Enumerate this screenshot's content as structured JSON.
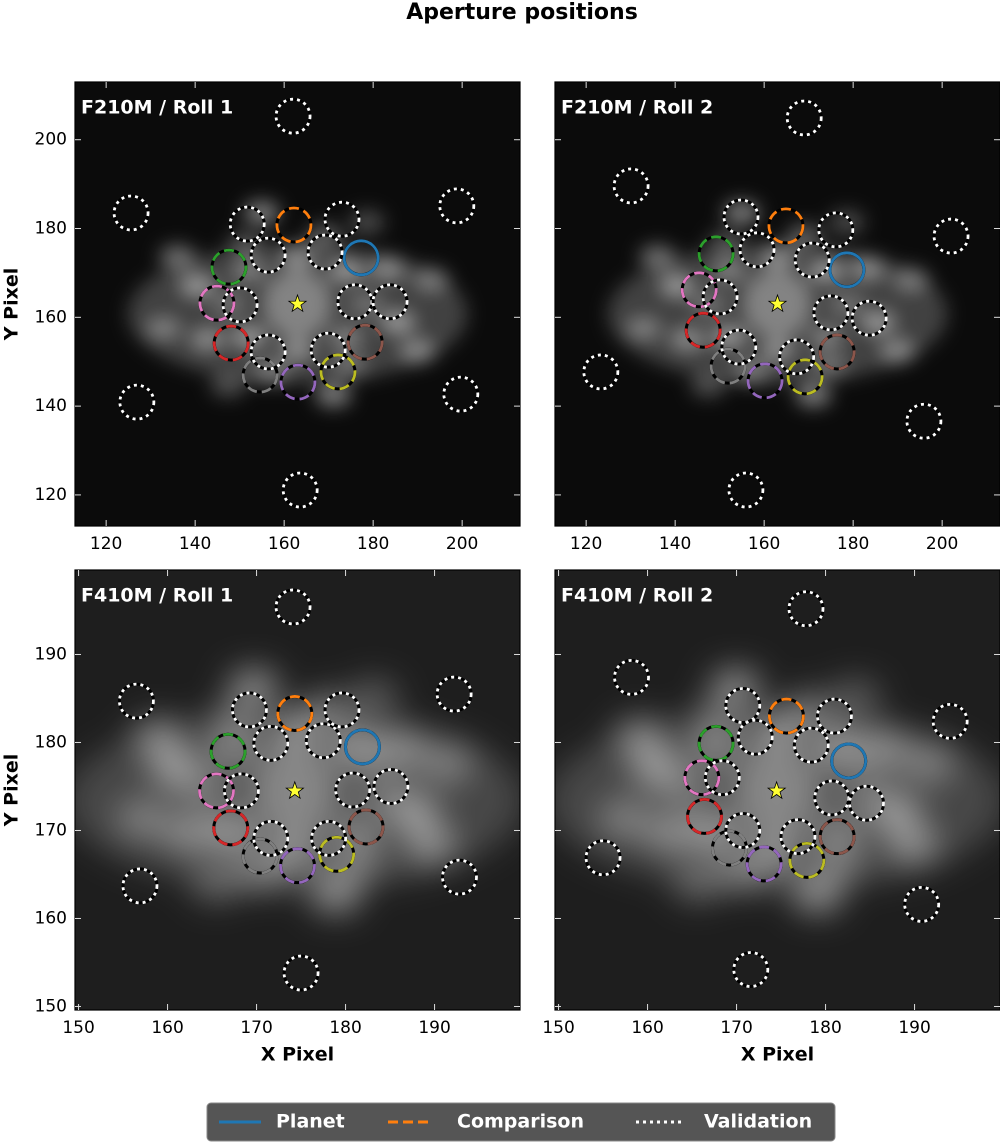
{
  "title": "Aperture positions",
  "chart_data": [
    {
      "type": "scatter",
      "title": "F210M / Roll 1",
      "ylabel": "Y Pixel",
      "xlim": [
        113,
        213
      ],
      "ylim": [
        113,
        213
      ],
      "xticks": [
        120,
        140,
        160,
        180,
        200
      ],
      "yticks": [
        120,
        140,
        160,
        180,
        200
      ],
      "ytick_labels": true,
      "star": {
        "x": 163,
        "y": 163,
        "color": "#ffff33"
      },
      "series": [
        {
          "name": "Planet",
          "color": "#1f77b4",
          "style": "solid",
          "x": [
            177.3
          ],
          "y": [
            173.4
          ]
        },
        {
          "name": "Comparison",
          "color": "#ff7f0e",
          "style": "dashed",
          "colors": [
            "#ff7f0e",
            "#2ca02c",
            "#d62728",
            "#9467bd",
            "#8c564b",
            "#e377c2",
            "#7f7f7f",
            "#bcbd22"
          ],
          "x": [
            162.2,
            147.6,
            148.1,
            163.1,
            178.2,
            144.9,
            154.6,
            172.1
          ],
          "y": [
            180.8,
            171.3,
            154.2,
            145.4,
            154.4,
            163.2,
            147.0,
            147.7
          ]
        },
        {
          "name": "Validation",
          "color": "#ffffff",
          "style": "dotted",
          "x": [
            162.0,
            125.6,
            198.8,
            151.7,
            156.4,
            169.2,
            173.0,
            150.1,
            175.9,
            183.8,
            156.4,
            169.9,
            126.9,
            199.7,
            163.6
          ],
          "y": [
            205.3,
            183.5,
            185.1,
            181.0,
            174.0,
            174.7,
            182.1,
            162.8,
            163.5,
            163.5,
            152.2,
            152.6,
            140.9,
            142.7,
            121.1
          ]
        }
      ]
    },
    {
      "type": "scatter",
      "title": "F210M / Roll 2",
      "xlim": [
        113,
        213
      ],
      "ylim": [
        113,
        213
      ],
      "xticks": [
        120,
        140,
        160,
        180,
        200
      ],
      "yticks": [
        120,
        140,
        160,
        180,
        200
      ],
      "ytick_labels": false,
      "star": {
        "x": 163,
        "y": 163,
        "color": "#ffff33"
      },
      "series": [
        {
          "name": "Planet",
          "color": "#1f77b4",
          "style": "solid",
          "x": [
            178.6
          ],
          "y": [
            170.7
          ]
        },
        {
          "name": "Comparison",
          "color": "#ff7f0e",
          "style": "dashed",
          "colors": [
            "#ff7f0e",
            "#2ca02c",
            "#d62728",
            "#9467bd",
            "#8c564b",
            "#e377c2",
            "#7f7f7f",
            "#bcbd22"
          ],
          "x": [
            164.9,
            149.2,
            146.3,
            160.2,
            176.4,
            145.4,
            151.9,
            169.2
          ],
          "y": [
            180.6,
            174.3,
            157.1,
            145.7,
            152.2,
            166.2,
            149.0,
            146.6
          ]
        },
        {
          "name": "Validation",
          "color": "#ffffff",
          "style": "dotted",
          "x": [
            169.0,
            130.1,
            202.0,
            154.8,
            158.4,
            170.8,
            176.1,
            150.1,
            175.0,
            183.6,
            154.3,
            167.3,
            123.3,
            195.9,
            155.9
          ],
          "y": [
            204.9,
            189.6,
            178.3,
            182.6,
            175.2,
            172.9,
            179.7,
            164.6,
            161.0,
            159.8,
            153.3,
            151.1,
            147.7,
            136.6,
            121.1
          ]
        }
      ]
    },
    {
      "type": "scatter",
      "title": "F410M / Roll 1",
      "xlabel": "X Pixel",
      "ylabel": "Y Pixel",
      "xlim": [
        149.6,
        199.6
      ],
      "ylim": [
        149.6,
        199.6
      ],
      "xticks": [
        150,
        160,
        170,
        180,
        190
      ],
      "yticks": [
        150,
        160,
        170,
        180,
        190
      ],
      "ytick_labels": true,
      "star": {
        "x": 174.3,
        "y": 174.5,
        "color": "#ffff33"
      },
      "series": [
        {
          "name": "Planet",
          "color": "#1f77b4",
          "style": "solid",
          "x": [
            181.9
          ],
          "y": [
            179.5
          ]
        },
        {
          "name": "Comparison",
          "color": "#ff7f0e",
          "style": "dashed",
          "colors": [
            "#ff7f0e",
            "#2ca02c",
            "#d62728",
            "#9467bd",
            "#8c564b",
            "#e377c2",
            "#7f7f7f",
            "#bcbd22"
          ],
          "x": [
            174.3,
            166.8,
            167.1,
            174.6,
            182.3,
            165.5,
            170.4,
            179.0
          ],
          "y": [
            183.3,
            179.0,
            170.3,
            166.0,
            170.4,
            174.5,
            167.1,
            167.3
          ]
        },
        {
          "name": "Validation",
          "color": "#ffffff",
          "style": "dotted",
          "x": [
            174.1,
            156.5,
            192.2,
            169.2,
            171.6,
            177.5,
            179.6,
            168.3,
            180.8,
            185.1,
            171.6,
            178.1,
            156.9,
            192.8,
            175.0
          ],
          "y": [
            195.4,
            184.7,
            185.5,
            183.7,
            179.9,
            180.2,
            183.7,
            174.5,
            174.6,
            175.0,
            169.1,
            169.1,
            163.7,
            164.7,
            153.8
          ]
        }
      ]
    },
    {
      "type": "scatter",
      "title": "F410M / Roll 2",
      "xlabel": "X Pixel",
      "xlim": [
        149.6,
        199.6
      ],
      "ylim": [
        149.6,
        199.6
      ],
      "xticks": [
        150,
        160,
        170,
        180,
        190
      ],
      "yticks": [
        150,
        160,
        170,
        180,
        190
      ],
      "ytick_labels": false,
      "star": {
        "x": 174.5,
        "y": 174.5,
        "color": "#ffff33"
      },
      "series": [
        {
          "name": "Planet",
          "color": "#1f77b4",
          "style": "solid",
          "x": [
            182.6
          ],
          "y": [
            177.9
          ]
        },
        {
          "name": "Comparison",
          "color": "#ff7f0e",
          "style": "dashed",
          "colors": [
            "#ff7f0e",
            "#2ca02c",
            "#d62728",
            "#9467bd",
            "#8c564b",
            "#e377c2",
            "#7f7f7f",
            "#bcbd22"
          ],
          "x": [
            175.6,
            167.7,
            166.4,
            173.1,
            181.3,
            166.1,
            169.2,
            177.9
          ],
          "y": [
            183.0,
            179.9,
            171.6,
            166.2,
            169.3,
            176.0,
            168.0,
            166.6
          ]
        },
        {
          "name": "Validation",
          "color": "#ffffff",
          "style": "dotted",
          "x": [
            177.8,
            158.2,
            194.0,
            170.7,
            172.1,
            178.4,
            181.0,
            168.4,
            180.7,
            184.6,
            170.7,
            176.9,
            155.0,
            190.8,
            171.6
          ],
          "y": [
            195.2,
            187.4,
            182.4,
            184.2,
            180.6,
            179.7,
            183.0,
            176.0,
            173.7,
            173.1,
            170.0,
            169.3,
            166.9,
            161.6,
            154.2
          ]
        }
      ]
    }
  ]
}
